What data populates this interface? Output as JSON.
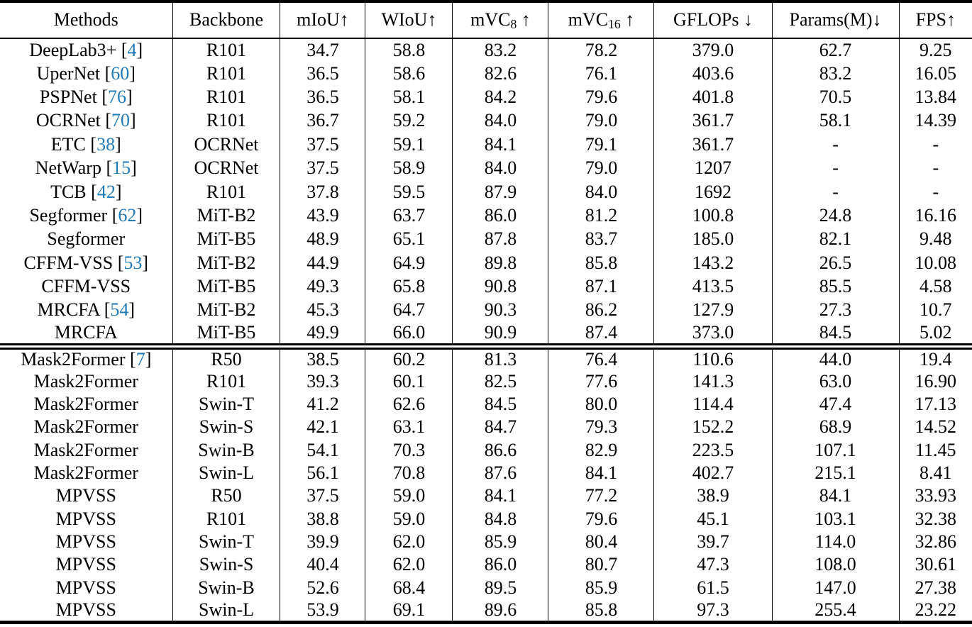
{
  "table": {
    "caption_visible": false,
    "columns": [
      {
        "id": "methods",
        "text": "Methods",
        "sub": "",
        "suffix": ""
      },
      {
        "id": "backbone",
        "text": "Backbone",
        "sub": "",
        "suffix": ""
      },
      {
        "id": "miou",
        "text": "mIoU",
        "sub": "",
        "suffix": "↑"
      },
      {
        "id": "wiou",
        "text": "WIoU",
        "sub": "",
        "suffix": "↑"
      },
      {
        "id": "mvc8",
        "text": "mVC",
        "sub": "8",
        "suffix": " ↑"
      },
      {
        "id": "mvc16",
        "text": "mVC",
        "sub": "16",
        "suffix": " ↑"
      },
      {
        "id": "gflops",
        "text": "GFLOPs",
        "sub": "",
        "suffix": " ↓"
      },
      {
        "id": "params",
        "text": "Params(M)",
        "sub": "",
        "suffix": "↓"
      },
      {
        "id": "fps",
        "text": "FPS",
        "sub": "",
        "suffix": "↑"
      }
    ],
    "col_widths_pct": [
      17.74,
      11.09,
      8.76,
      8.98,
      9.85,
      10.88,
      12.12,
      13.07,
      7.51
    ],
    "sections": [
      {
        "rows": [
          {
            "method": "DeepLab3+",
            "cite": "4",
            "backbone": "R101",
            "values": [
              "34.7",
              "58.8",
              "83.2",
              "78.2",
              "379.0",
              "62.7",
              "9.25"
            ]
          },
          {
            "method": "UperNet",
            "cite": "60",
            "backbone": "R101",
            "values": [
              "36.5",
              "58.6",
              "82.6",
              "76.1",
              "403.6",
              "83.2",
              "16.05"
            ]
          },
          {
            "method": "PSPNet",
            "cite": "76",
            "backbone": "R101",
            "values": [
              "36.5",
              "58.1",
              "84.2",
              "79.6",
              "401.8",
              "70.5",
              "13.84"
            ]
          },
          {
            "method": "OCRNet",
            "cite": "70",
            "backbone": "R101",
            "values": [
              "36.7",
              "59.2",
              "84.0",
              "79.0",
              "361.7",
              "58.1",
              "14.39"
            ]
          },
          {
            "method": "ETC",
            "cite": "38",
            "backbone": "OCRNet",
            "values": [
              "37.5",
              "59.1",
              "84.1",
              "79.1",
              "361.7",
              "-",
              "-"
            ]
          },
          {
            "method": "NetWarp",
            "cite": "15",
            "backbone": "OCRNet",
            "values": [
              "37.5",
              "58.9",
              "84.0",
              "79.0",
              "1207",
              "-",
              "-"
            ]
          },
          {
            "method": "TCB",
            "cite": "42",
            "backbone": "R101",
            "values": [
              "37.8",
              "59.5",
              "87.9",
              "84.0",
              "1692",
              "-",
              "-"
            ]
          },
          {
            "method": "Segformer",
            "cite": "62",
            "backbone": "MiT-B2",
            "values": [
              "43.9",
              "63.7",
              "86.0",
              "81.2",
              "100.8",
              "24.8",
              "16.16"
            ]
          },
          {
            "method": "Segformer",
            "cite": "",
            "backbone": "MiT-B5",
            "values": [
              "48.9",
              "65.1",
              "87.8",
              "83.7",
              "185.0",
              "82.1",
              "9.48"
            ]
          },
          {
            "method": "CFFM-VSS",
            "cite": "53",
            "backbone": "MiT-B2",
            "values": [
              "44.9",
              "64.9",
              "89.8",
              "85.8",
              "143.2",
              "26.5",
              "10.08"
            ]
          },
          {
            "method": "CFFM-VSS",
            "cite": "",
            "backbone": "MiT-B5",
            "values": [
              "49.3",
              "65.8",
              "90.8",
              "87.1",
              "413.5",
              "85.5",
              "4.58"
            ]
          },
          {
            "method": "MRCFA",
            "cite": "54",
            "backbone": "MiT-B2",
            "values": [
              "45.3",
              "64.7",
              "90.3",
              "86.2",
              "127.9",
              "27.3",
              "10.7"
            ]
          },
          {
            "method": "MRCFA",
            "cite": "",
            "backbone": "MiT-B5",
            "values": [
              "49.9",
              "66.0",
              "90.9",
              "87.4",
              "373.0",
              "84.5",
              "5.02"
            ]
          }
        ]
      },
      {
        "rows": [
          {
            "method": "Mask2Former",
            "cite": "7",
            "backbone": "R50",
            "values": [
              "38.5",
              "60.2",
              "81.3",
              "76.4",
              "110.6",
              "44.0",
              "19.4"
            ]
          },
          {
            "method": "Mask2Former",
            "cite": "",
            "backbone": "R101",
            "values": [
              "39.3",
              "60.1",
              "82.5",
              "77.6",
              "141.3",
              "63.0",
              "16.90"
            ]
          },
          {
            "method": "Mask2Former",
            "cite": "",
            "backbone": "Swin-T",
            "values": [
              "41.2",
              "62.6",
              "84.5",
              "80.0",
              "114.4",
              "47.4",
              "17.13"
            ]
          },
          {
            "method": "Mask2Former",
            "cite": "",
            "backbone": "Swin-S",
            "values": [
              "42.1",
              "63.1",
              "84.7",
              "79.3",
              "152.2",
              "68.9",
              "14.52"
            ]
          },
          {
            "method": "Mask2Former",
            "cite": "",
            "backbone": "Swin-B",
            "values": [
              "54.1",
              "70.3",
              "86.6",
              "82.9",
              "223.5",
              "107.1",
              "11.45"
            ]
          },
          {
            "method": "Mask2Former",
            "cite": "",
            "backbone": "Swin-L",
            "values": [
              "56.1",
              "70.8",
              "87.6",
              "84.1",
              "402.7",
              "215.1",
              "8.41"
            ]
          },
          {
            "method": "MPVSS",
            "cite": "",
            "backbone": "R50",
            "values": [
              "37.5",
              "59.0",
              "84.1",
              "77.2",
              "38.9",
              "84.1",
              "33.93"
            ]
          },
          {
            "method": "MPVSS",
            "cite": "",
            "backbone": "R101",
            "values": [
              "38.8",
              "59.0",
              "84.8",
              "79.6",
              "45.1",
              "103.1",
              "32.38"
            ]
          },
          {
            "method": "MPVSS",
            "cite": "",
            "backbone": "Swin-T",
            "values": [
              "39.9",
              "62.0",
              "85.9",
              "80.4",
              "39.7",
              "114.0",
              "32.86"
            ]
          },
          {
            "method": "MPVSS",
            "cite": "",
            "backbone": "Swin-S",
            "values": [
              "40.4",
              "62.0",
              "86.0",
              "80.7",
              "47.3",
              "108.0",
              "30.61"
            ]
          },
          {
            "method": "MPVSS",
            "cite": "",
            "backbone": "Swin-B",
            "values": [
              "52.6",
              "68.4",
              "89.5",
              "85.9",
              "61.5",
              "147.0",
              "27.38"
            ]
          },
          {
            "method": "MPVSS",
            "cite": "",
            "backbone": "Swin-L",
            "values": [
              "53.9",
              "69.1",
              "89.6",
              "85.8",
              "97.3",
              "255.4",
              "23.22"
            ]
          }
        ]
      }
    ]
  },
  "colors": {
    "text": "#000000",
    "citation": "#1f7ab8",
    "rule": "#000000",
    "background": "#ffffff"
  }
}
